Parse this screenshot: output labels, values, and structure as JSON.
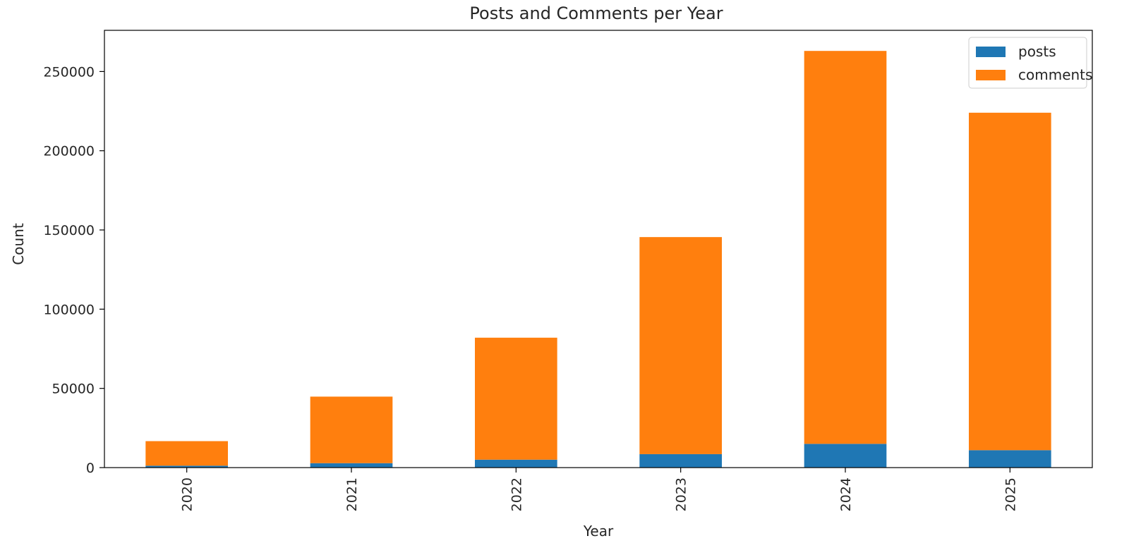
{
  "chart_data": {
    "type": "bar",
    "stacked": true,
    "title": "Posts and Comments per Year",
    "xlabel": "Year",
    "ylabel": "Count",
    "categories": [
      "2020",
      "2021",
      "2022",
      "2023",
      "2024",
      "2025"
    ],
    "series": [
      {
        "name": "posts",
        "color": "#1f77b4",
        "values": [
          1200,
          2800,
          5000,
          8500,
          15000,
          11000
        ]
      },
      {
        "name": "comments",
        "color": "#ff7f0e",
        "values": [
          15500,
          42000,
          77000,
          137000,
          248000,
          213000
        ]
      }
    ],
    "ylim": [
      0,
      276000
    ],
    "yticks": [
      0,
      50000,
      100000,
      150000,
      200000,
      250000
    ],
    "grid": false,
    "legend_position": "top-right"
  }
}
